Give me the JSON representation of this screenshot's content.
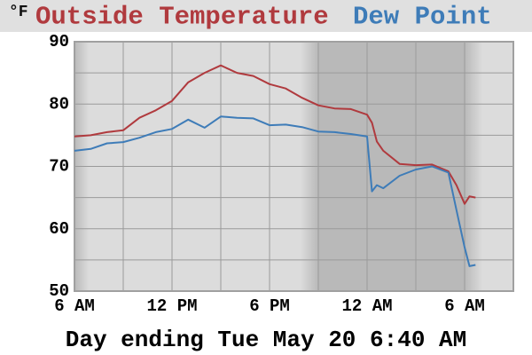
{
  "chart_data": {
    "type": "line",
    "unit": "°F",
    "caption": "Day ending Tue May 20 6:40 AM",
    "x": [
      0,
      1,
      2,
      3,
      4,
      5,
      6,
      7,
      8,
      9,
      10,
      11,
      12,
      13,
      14,
      15,
      16,
      17,
      18,
      18.3,
      18.6,
      19,
      20,
      21,
      22,
      23,
      23.5,
      24,
      24.3,
      24.67
    ],
    "xlim": [
      0,
      27
    ],
    "xticks": [
      {
        "value": 0,
        "label": "6 AM"
      },
      {
        "value": 6,
        "label": "12 PM"
      },
      {
        "value": 12,
        "label": "6 PM"
      },
      {
        "value": 18,
        "label": "12 AM"
      },
      {
        "value": 24,
        "label": "6 AM"
      }
    ],
    "x_minor_grid": [
      3,
      9,
      15,
      21,
      27
    ],
    "ylim": [
      50,
      90
    ],
    "yticks": [
      50,
      60,
      70,
      80,
      90
    ],
    "y_minor_grid": [
      55,
      65,
      75,
      85
    ],
    "night": [
      15,
      24
    ],
    "grid": true,
    "series": [
      {
        "name": "Outside Temperature",
        "color": "#b03a3e",
        "values": [
          74.8,
          75,
          75.5,
          75.8,
          77.8,
          79,
          80.5,
          83.5,
          85,
          86.2,
          85,
          84.5,
          83.2,
          82.5,
          81,
          79.8,
          79.3,
          79.2,
          78.3,
          77,
          74,
          72.5,
          70.4,
          70.2,
          70.3,
          69.2,
          67,
          64,
          65.2,
          65
        ]
      },
      {
        "name": "Dew Point",
        "color": "#3e7cb8",
        "values": [
          72.5,
          72.8,
          73.7,
          73.9,
          74.6,
          75.5,
          76,
          77.5,
          76.2,
          78,
          77.8,
          77.7,
          76.6,
          76.7,
          76.3,
          75.6,
          75.5,
          75.2,
          74.8,
          66,
          67,
          66.5,
          68.5,
          69.5,
          70,
          69,
          63,
          57,
          54,
          54.2
        ]
      }
    ]
  }
}
